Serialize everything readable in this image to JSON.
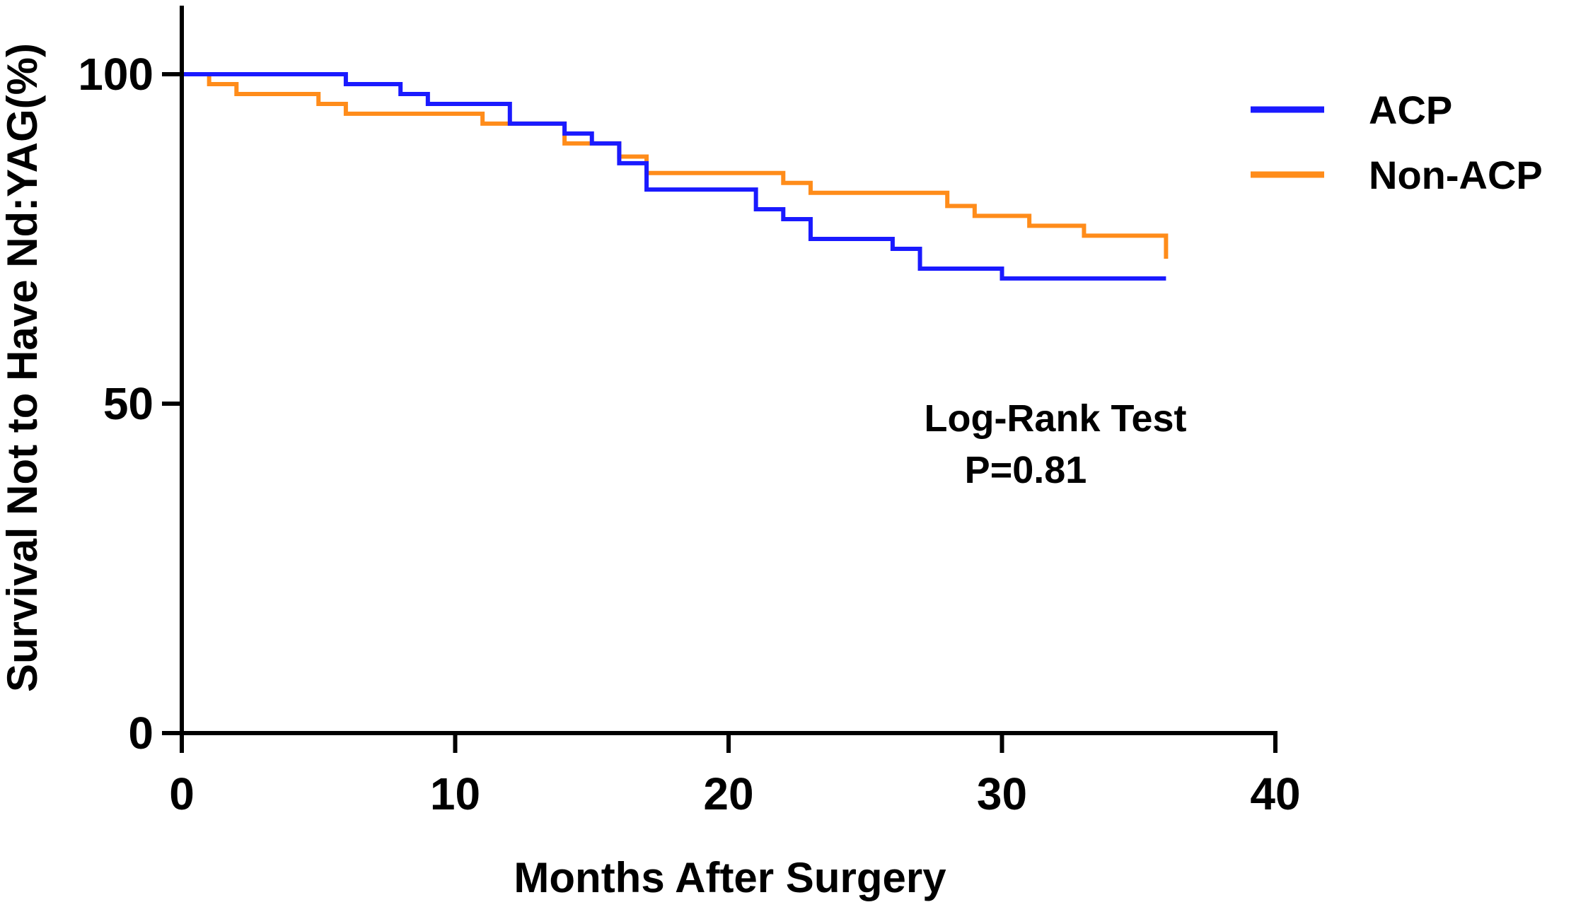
{
  "chart_data": {
    "type": "line",
    "step": true,
    "xlabel": "Months After Surgery",
    "ylabel": "Survival Not to Have Nd:YAG(%)",
    "xlim": [
      0,
      40
    ],
    "ylim": [
      0,
      110
    ],
    "x_ticks": [
      0,
      10,
      20,
      30,
      40
    ],
    "y_ticks": [
      0,
      50,
      100
    ],
    "grid": false,
    "legend_position": "top-right",
    "series": [
      {
        "name": "ACP",
        "color": "#1a1aff",
        "x": [
          0,
          6,
          8,
          9,
          12,
          14,
          15,
          16,
          17,
          21,
          22,
          23,
          26,
          27,
          30,
          36
        ],
        "y": [
          100,
          98.5,
          97,
          95.5,
          92.5,
          91,
          89.5,
          86.5,
          82.5,
          79.5,
          78,
          75,
          73.5,
          70.5,
          69,
          69
        ]
      },
      {
        "name": "Non-ACP",
        "color": "#ff8c1a",
        "x": [
          0,
          1,
          2,
          5,
          6,
          11,
          14,
          16,
          17,
          22,
          23,
          28,
          29,
          31,
          33,
          36
        ],
        "y": [
          100,
          98.5,
          97,
          95.5,
          94,
          92.5,
          89.5,
          87.5,
          85,
          83.5,
          82,
          80,
          78.5,
          77,
          75.5,
          72
        ]
      }
    ],
    "annotations": [
      "Log-Rank Test",
      "P=0.81"
    ]
  }
}
